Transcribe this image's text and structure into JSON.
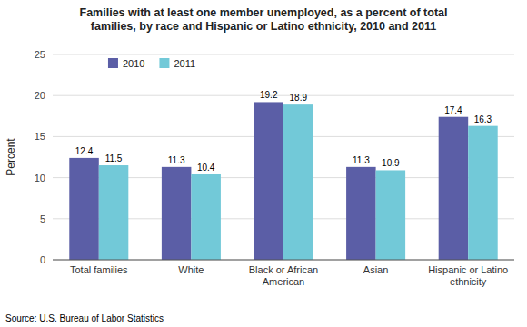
{
  "chart_data": {
    "type": "bar",
    "title": "Families with at least one member unemployed, as a percent of total\nfamilies, by race and Hispanic or Latino ethnicity, 2010 and 2011",
    "categories": [
      "Total families",
      "White",
      "Black or African\nAmerican",
      "Asian",
      "Hispanic or Latino\nethnicity"
    ],
    "series": [
      {
        "name": "2010",
        "color": "#5b5ea6",
        "values": [
          12.4,
          11.3,
          19.2,
          11.3,
          17.4
        ]
      },
      {
        "name": "2011",
        "color": "#72c9d8",
        "values": [
          11.5,
          10.4,
          18.9,
          10.9,
          16.3
        ]
      }
    ],
    "ylabel": "Percent",
    "ylim": [
      0,
      25
    ],
    "yticks": [
      0,
      5,
      10,
      15,
      20,
      25
    ],
    "grid": true,
    "legend": "upper left",
    "data_labels": true,
    "annotations": [
      "Source: U.S. Bureau of Labor Statistics"
    ]
  }
}
